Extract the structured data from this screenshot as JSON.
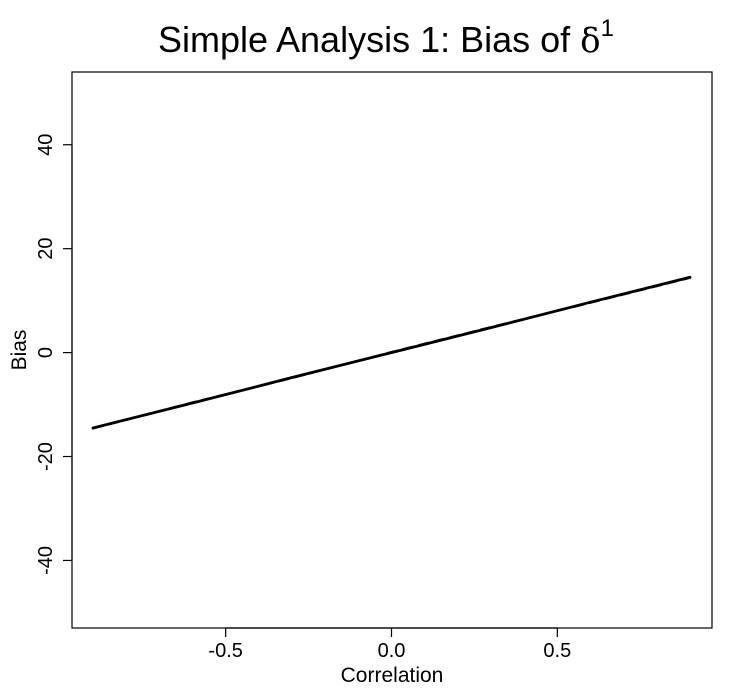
{
  "chart_data": {
    "type": "line",
    "title": "Simple Analysis 1: Bias of ",
    "title_symbol": "δ",
    "title_superscript": "1",
    "xlabel": "Correlation",
    "ylabel": "Bias",
    "xlim": [
      -0.9,
      0.9
    ],
    "ylim": [
      -53,
      54
    ],
    "x_ticks": [
      -0.5,
      0.0,
      0.5
    ],
    "x_tick_labels": [
      "-0.5",
      "0.0",
      "0.5"
    ],
    "y_ticks": [
      -40,
      -20,
      0,
      20,
      40
    ],
    "y_tick_labels": [
      "-40",
      "-20",
      "0",
      "20",
      "40"
    ],
    "grid": false,
    "series": [
      {
        "style": "solid",
        "color": "#000000",
        "x": [
          -0.9,
          -0.6,
          -0.3,
          0.0,
          0.3,
          0.6,
          0.9
        ],
        "y": [
          -14.5,
          -9.7,
          -4.8,
          0.0,
          4.8,
          9.7,
          14.5
        ]
      },
      {
        "style": "dashed",
        "color": "#000000",
        "x": [
          -0.9,
          -0.6,
          -0.3,
          0.0,
          0.3,
          0.6,
          0.9
        ],
        "y": [
          -14.6,
          -9.6,
          -4.9,
          0.1,
          4.9,
          9.6,
          14.4
        ]
      }
    ]
  }
}
